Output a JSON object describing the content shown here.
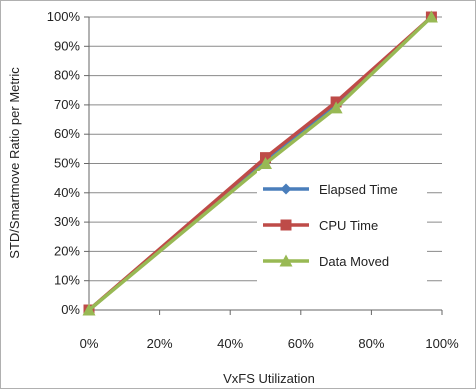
{
  "chart_data": {
    "type": "line",
    "xlabel": "VxFS Utilization",
    "ylabel": "STD/Smartmove Ratio per Metric",
    "xlim": [
      0,
      100
    ],
    "ylim": [
      0,
      100
    ],
    "x_ticks": [
      "0%",
      "20%",
      "40%",
      "60%",
      "80%",
      "100%"
    ],
    "y_ticks": [
      "0%",
      "10%",
      "20%",
      "30%",
      "40%",
      "50%",
      "60%",
      "70%",
      "80%",
      "90%",
      "100%"
    ],
    "grid": "horizontal",
    "legend_position": "right",
    "series": [
      {
        "name": "Elapsed Time",
        "color": "#4a7ebb",
        "marker": "diamond",
        "x": [
          0,
          50,
          70,
          97
        ],
        "y": [
          0,
          51,
          70,
          100
        ]
      },
      {
        "name": "CPU Time",
        "color": "#be4b48",
        "marker": "square",
        "x": [
          0,
          50,
          70,
          97
        ],
        "y": [
          0,
          52,
          71,
          100
        ]
      },
      {
        "name": "Data Moved",
        "color": "#98b954",
        "marker": "triangle",
        "x": [
          0,
          50,
          70,
          97
        ],
        "y": [
          0,
          50,
          69,
          100
        ]
      }
    ]
  }
}
